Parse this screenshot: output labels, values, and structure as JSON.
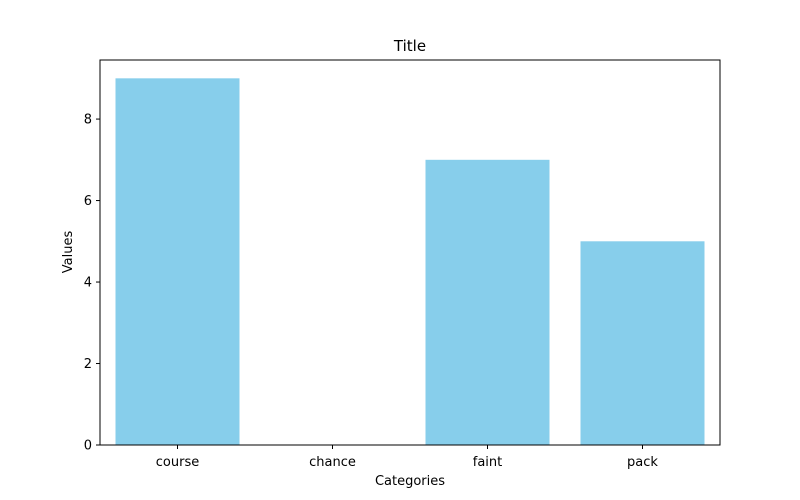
{
  "chart_data": {
    "type": "bar",
    "title": "Title",
    "xlabel": "Categories",
    "ylabel": "Values",
    "categories": [
      "course",
      "chance",
      "faint",
      "pack"
    ],
    "values": [
      9,
      0,
      7,
      5
    ],
    "ylim": [
      0,
      9.45
    ],
    "yticks": [
      0,
      2,
      4,
      6,
      8
    ],
    "grid": false,
    "bar_color": "#87ceeb"
  }
}
